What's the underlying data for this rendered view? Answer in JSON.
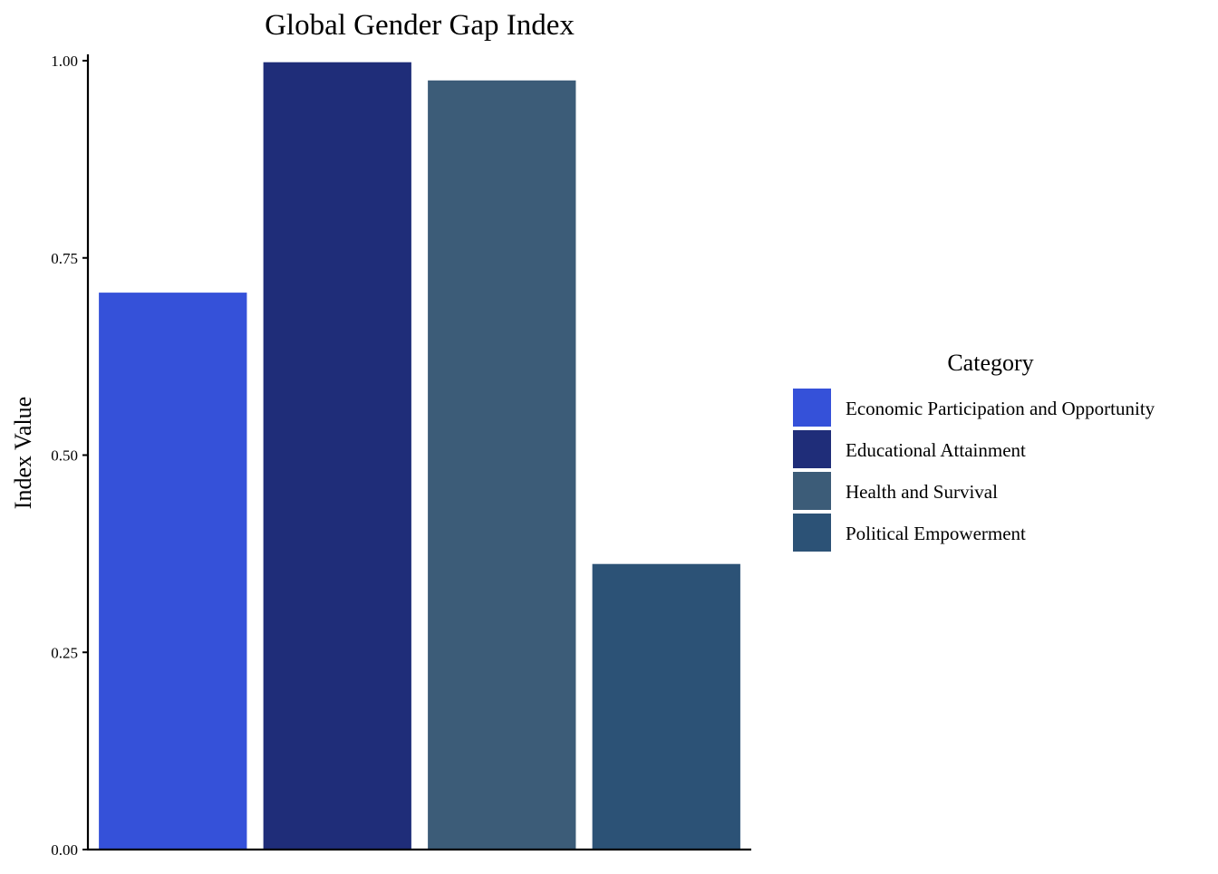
{
  "chart_data": {
    "type": "bar",
    "title": "Global Gender Gap Index",
    "xlabel": "",
    "ylabel": "Index Value",
    "categories": [
      "Economic Participation and Opportunity",
      "Educational Attainment",
      "Health and Survival",
      "Political Empowerment"
    ],
    "values": [
      0.706,
      0.998,
      0.975,
      0.362
    ],
    "colors": [
      "#3551D9",
      "#1F2D79",
      "#3C5C78",
      "#2C5276"
    ],
    "ylim": [
      0,
      1.0
    ],
    "yticks": [
      0.0,
      0.25,
      0.5,
      0.75,
      1.0
    ],
    "ytick_labels": [
      "0.00",
      "0.25",
      "0.50",
      "0.75",
      "1.00"
    ],
    "grid": false,
    "legend": {
      "title": "Category",
      "placement": "right",
      "entries": [
        "Economic Participation and Opportunity",
        "Educational Attainment",
        "Health and Survival",
        "Political Empowerment"
      ]
    }
  }
}
